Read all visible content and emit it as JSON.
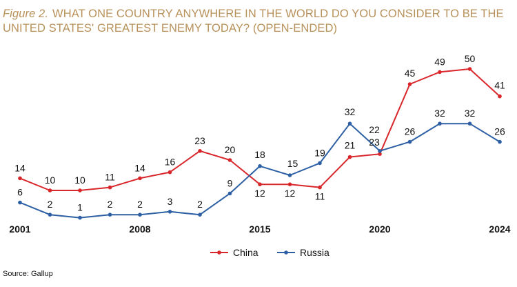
{
  "header": {
    "figure_label": "Figure 2.",
    "title": "WHAT ONE COUNTRY ANYWHERE IN THE WORLD DO YOU CONSIDER TO BE THE UNITED STATES' GREATEST ENEMY TODAY? (OPEN-ENDED)"
  },
  "footer": {
    "source": "Source: Gallup"
  },
  "chart_data": {
    "type": "line",
    "title": "WHAT ONE COUNTRY ANYWHERE IN THE WORLD DO YOU CONSIDER TO BE THE UNITED STATES' GREATEST ENEMY TODAY? (OPEN-ENDED)",
    "x_tick_labels": [
      "2001",
      "2008",
      "2015",
      "2020",
      "2024"
    ],
    "grid": false,
    "legend_position": "bottom-center",
    "series": [
      {
        "name": "China",
        "color": "#d9262b",
        "points": [
          {
            "x": 0,
            "y": 14
          },
          {
            "x": 1,
            "y": 10
          },
          {
            "x": 2,
            "y": 10
          },
          {
            "x": 3,
            "y": 11
          },
          {
            "x": 4,
            "y": 14
          },
          {
            "x": 5,
            "y": 16
          },
          {
            "x": 6,
            "y": 23
          },
          {
            "x": 7,
            "y": 20
          },
          {
            "x": 8,
            "y": 12
          },
          {
            "x": 9,
            "y": 12
          },
          {
            "x": 10,
            "y": 11
          },
          {
            "x": 11,
            "y": 21
          },
          {
            "x": 12,
            "y": 22
          },
          {
            "x": 13,
            "y": 45
          },
          {
            "x": 14,
            "y": 49
          },
          {
            "x": 15,
            "y": 50
          },
          {
            "x": 16,
            "y": 41
          }
        ]
      },
      {
        "name": "Russia",
        "color": "#2c5fa3",
        "points": [
          {
            "x": 0,
            "y": 6
          },
          {
            "x": 1,
            "y": 2
          },
          {
            "x": 2,
            "y": 1
          },
          {
            "x": 3,
            "y": 2
          },
          {
            "x": 4,
            "y": 2
          },
          {
            "x": 5,
            "y": 3
          },
          {
            "x": 6,
            "y": 2
          },
          {
            "x": 7,
            "y": 9
          },
          {
            "x": 8,
            "y": 18
          },
          {
            "x": 9,
            "y": 15
          },
          {
            "x": 10,
            "y": 19
          },
          {
            "x": 11,
            "y": 32
          },
          {
            "x": 12,
            "y": 23
          },
          {
            "x": 13,
            "y": 26
          },
          {
            "x": 14,
            "y": 32
          },
          {
            "x": 15,
            "y": 32
          },
          {
            "x": 16,
            "y": 26
          }
        ]
      }
    ]
  }
}
